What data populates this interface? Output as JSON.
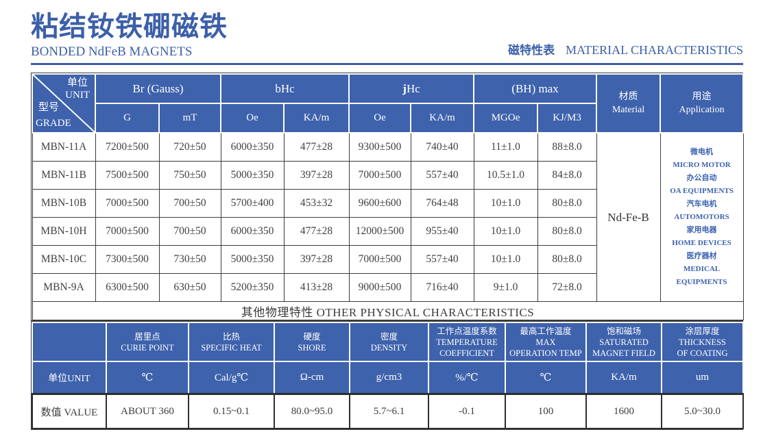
{
  "page": {
    "title_cn": "粘结钕铁硼磁铁",
    "subtitle_en": "BONDED NdFeB MAGNETS",
    "right_title_cn": "磁特性表",
    "right_title_en": "MATERIAL CHARACTERISTICS"
  },
  "colors": {
    "header_blue": "#3e62ac",
    "title_blue": "#3c5fa9",
    "application_text_blue": "#3c62b0",
    "grid_line": "#3b3b3b"
  },
  "magnet_table": {
    "corner": {
      "unit_cn": "单位",
      "unit_en": "UNIT",
      "grade_cn": "型号",
      "grade_en": "GRADE"
    },
    "groups": [
      "Br (Gauss)",
      "bHc",
      "jHc",
      "(BH) max"
    ],
    "subunits": [
      "G",
      "mT",
      "Oe",
      "KA/m",
      "Oe",
      "KA/m",
      "MGOe",
      "KJ/M3"
    ],
    "material_header": [
      "材质",
      "Material"
    ],
    "application_header": [
      "用途",
      "Application"
    ],
    "material_value": "Nd-Fe-B",
    "application_lines": [
      "微电机",
      "MICRO MOTOR",
      "办公自动",
      "OA EQUIPMENTS",
      "汽车电机",
      "AUTOMOTORS",
      "家用电器",
      "HOME DEVICES",
      "医疗器材",
      "MEDICAL",
      "EQUIPMENTS"
    ],
    "rows": [
      {
        "grade": "MBN-11A",
        "values": [
          "7200±500",
          "720±50",
          "6000±350",
          "477±28",
          "9300±500",
          "740±40",
          "11±1.0",
          "88±8.0"
        ]
      },
      {
        "grade": "MBN-11B",
        "values": [
          "7500±500",
          "750±50",
          "5000±350",
          "397±28",
          "7000±500",
          "557±40",
          "10.5±1.0",
          "84±8.0"
        ]
      },
      {
        "grade": "MBN-10B",
        "values": [
          "7000±500",
          "700±50",
          "5700±400",
          "453±32",
          "9600±600",
          "764±48",
          "10±1.0",
          "80±8.0"
        ]
      },
      {
        "grade": "MBN-10H",
        "values": [
          "7000±500",
          "700±50",
          "6000±350",
          "477±28",
          "12000±500",
          "955±40",
          "10±1.0",
          "80±8.0"
        ]
      },
      {
        "grade": "MBN-10C",
        "values": [
          "7300±500",
          "730±50",
          "5000±350",
          "397±28",
          "7000±500",
          "557±40",
          "10±1.0",
          "80±8.0"
        ]
      },
      {
        "grade": "MBN-9A",
        "values": [
          "6300±500",
          "630±50",
          "5200±350",
          "413±28",
          "9000±500",
          "716±40",
          "9±1.0",
          "72±8.0"
        ]
      }
    ]
  },
  "divider": "其他物理特性 OTHER PHYSICAL CHARACTERISTICS",
  "physical_table": {
    "headers": [
      [
        "居里点",
        "CURIE POINT"
      ],
      [
        "比热",
        "SPECIFIC HEAT"
      ],
      [
        "硬度",
        "SHORE"
      ],
      [
        "密度",
        "DENSITY"
      ],
      [
        "工作点温度系数",
        "TEMPERATURE",
        "COEFFICIENT"
      ],
      [
        "最高工作温度",
        "MAX",
        "OPERATION TEMP"
      ],
      [
        "饱和磁场",
        "SATURATED",
        "MAGNET FIELD"
      ],
      [
        "涂层厚度",
        "THICKNESS",
        "OF COATING"
      ]
    ],
    "unit_label": "单位UNIT",
    "units": [
      "℃",
      "Cal/g℃",
      "Ω-cm",
      "g/cm3",
      "%/℃",
      "℃",
      "KA/m",
      "um"
    ],
    "value_label": "数值 VALUE",
    "values": [
      "ABOUT 360",
      "0.15~0.1",
      "80.0~95.0",
      "5.7~6.1",
      "-0.1",
      "100",
      "1600",
      "5.0~30.0"
    ]
  }
}
